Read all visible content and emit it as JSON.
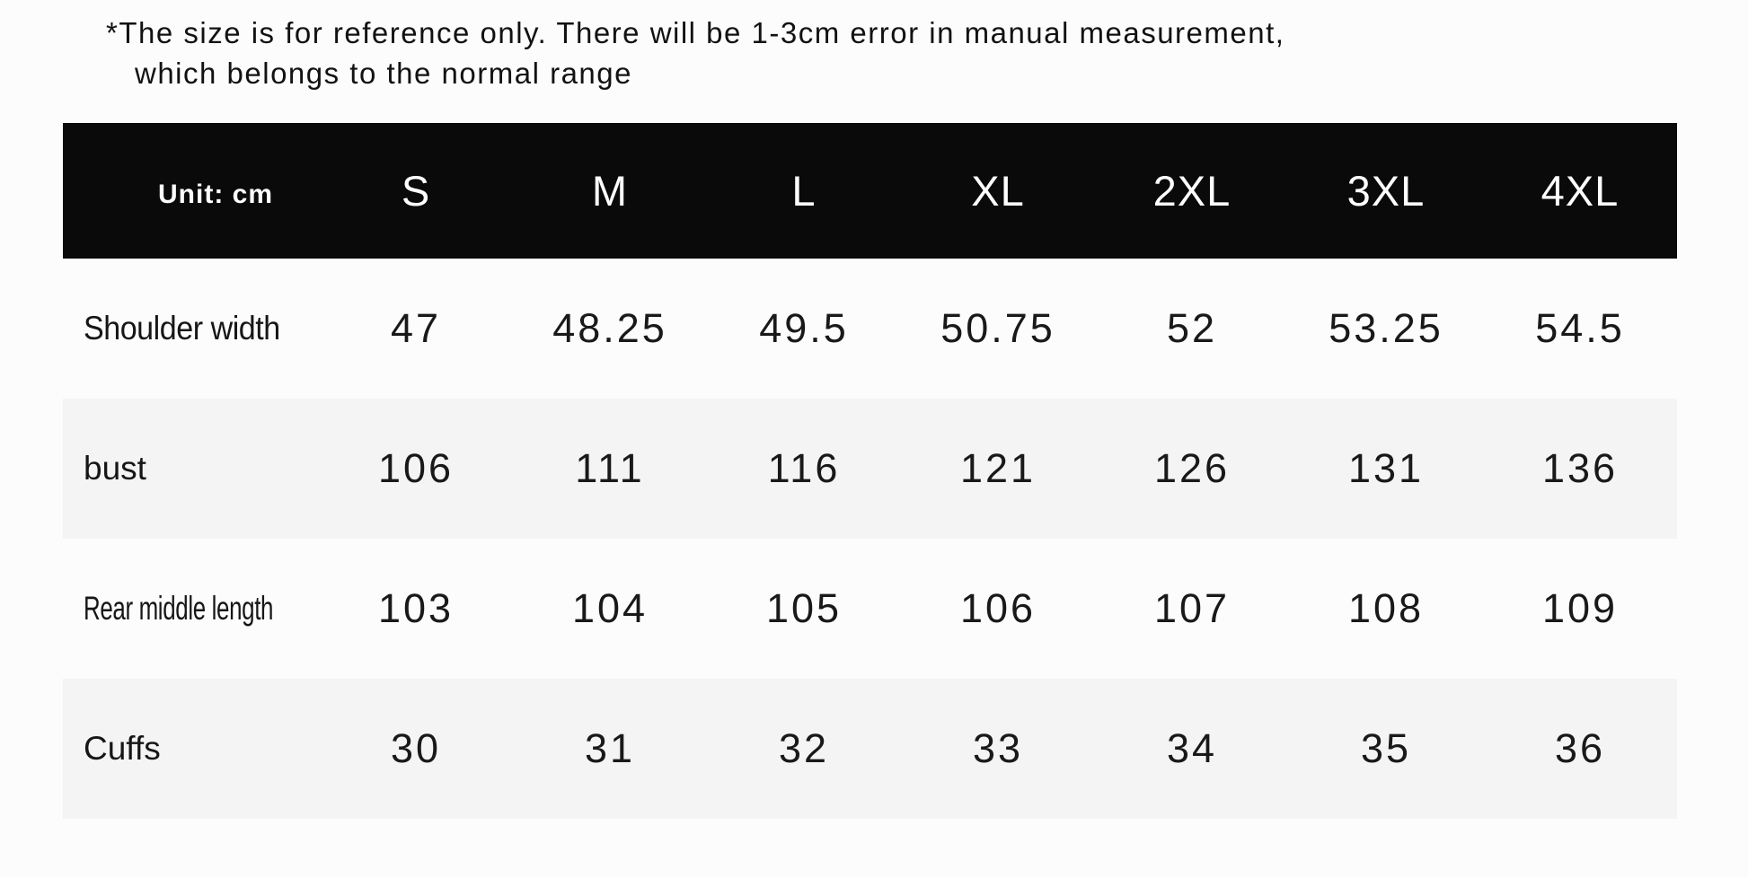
{
  "disclaimer": {
    "line1": "*The size is for reference only. There will be 1-3cm error in manual measurement,",
    "line2": "which belongs to the normal range"
  },
  "table": {
    "unit_label": "Unit: cm",
    "size_headers": [
      "S",
      "M",
      "L",
      "XL",
      "2XL",
      "3XL",
      "4XL"
    ],
    "rows": [
      {
        "label": "Shoulder width",
        "values": [
          "47",
          "48.25",
          "49.5",
          "50.75",
          "52",
          "53.25",
          "54.5"
        ]
      },
      {
        "label": "bust",
        "values": [
          "106",
          "111",
          "116",
          "121",
          "126",
          "131",
          "136"
        ]
      },
      {
        "label": "Rear middle length",
        "values": [
          "103",
          "104",
          "105",
          "106",
          "107",
          "108",
          "109"
        ]
      },
      {
        "label": "Cuffs",
        "values": [
          "30",
          "31",
          "32",
          "33",
          "34",
          "35",
          "36"
        ]
      }
    ]
  },
  "colors": {
    "header_bg": "#0a0a0a",
    "header_text": "#ffffff",
    "stripe_bg": "#f4f4f4",
    "body_text": "#1a1a1a",
    "page_bg": "#fcfcfc"
  },
  "chart_data": {
    "type": "table",
    "title": "Garment size chart",
    "unit": "cm",
    "columns": [
      "S",
      "M",
      "L",
      "XL",
      "2XL",
      "3XL",
      "4XL"
    ],
    "rows": [
      {
        "measurement": "Shoulder width",
        "values": [
          47,
          48.25,
          49.5,
          50.75,
          52,
          53.25,
          54.5
        ]
      },
      {
        "measurement": "bust",
        "values": [
          106,
          111,
          116,
          121,
          126,
          131,
          136
        ]
      },
      {
        "measurement": "Rear middle length",
        "values": [
          103,
          104,
          105,
          106,
          107,
          108,
          109
        ]
      },
      {
        "measurement": "Cuffs",
        "values": [
          30,
          31,
          32,
          33,
          34,
          35,
          36
        ]
      }
    ],
    "note": "*The size is for reference only. There will be 1-3cm error in manual measurement, which belongs to the normal range",
    "layout": "striped rows, black header band, no grid borders"
  }
}
